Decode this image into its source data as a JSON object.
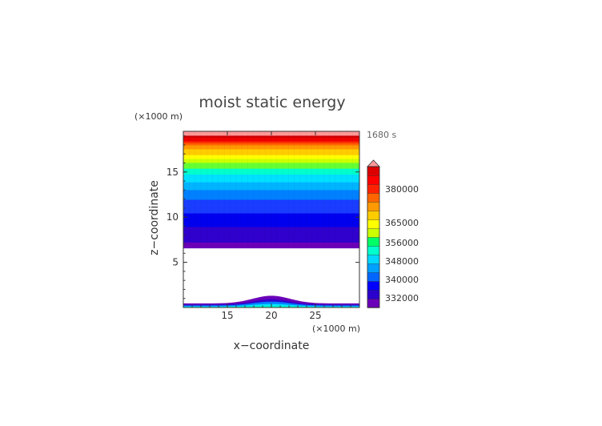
{
  "chart_data": {
    "type": "heatmap",
    "title": "moist static energy",
    "time_label": "1680 s",
    "xlabel": "x−coordinate",
    "ylabel": "z−coordinate",
    "x_unit": "(×1000 m)",
    "y_unit": "(×1000 m)",
    "xlim": [
      10,
      30
    ],
    "ylim": [
      0,
      19.5
    ],
    "x_ticks": [
      15,
      20,
      25
    ],
    "y_ticks": [
      5,
      10,
      15
    ],
    "blank_region": {
      "z_from": 6.6,
      "z_to": 0.85,
      "description_hidden": true
    },
    "mountain": {
      "center": 20,
      "half_width": 3,
      "height": 0.85
    },
    "colorbar": {
      "tick_labels": [
        "332000",
        "340000",
        "348000",
        "356000",
        "365000",
        "380000"
      ],
      "colors": [
        "#6a00b8",
        "#2a00cc",
        "#0000ff",
        "#0066ff",
        "#00a0ff",
        "#00d8ff",
        "#00ffcc",
        "#00ff66",
        "#ccff00",
        "#ffff00",
        "#ffcc00",
        "#ff9900",
        "#ff6600",
        "#ff2200",
        "#ff0000",
        "#dd0000",
        "#ff9999"
      ],
      "extend": "max"
    },
    "levels_upper": [
      {
        "z": 6.6,
        "value": 330000
      },
      {
        "z": 8.0,
        "value": 333000
      },
      {
        "z": 9.3,
        "value": 336000
      },
      {
        "z": 10.5,
        "value": 339000
      },
      {
        "z": 12.0,
        "value": 342000
      },
      {
        "z": 13.5,
        "value": 347000
      },
      {
        "z": 14.5,
        "value": 352000
      },
      {
        "z": 15.5,
        "value": 357000
      },
      {
        "z": 16.3,
        "value": 362000
      },
      {
        "z": 17.0,
        "value": 367000
      },
      {
        "z": 18.0,
        "value": 375000
      },
      {
        "z": 18.8,
        "value": 385000
      },
      {
        "z": 19.5,
        "value": 395000
      }
    ]
  }
}
